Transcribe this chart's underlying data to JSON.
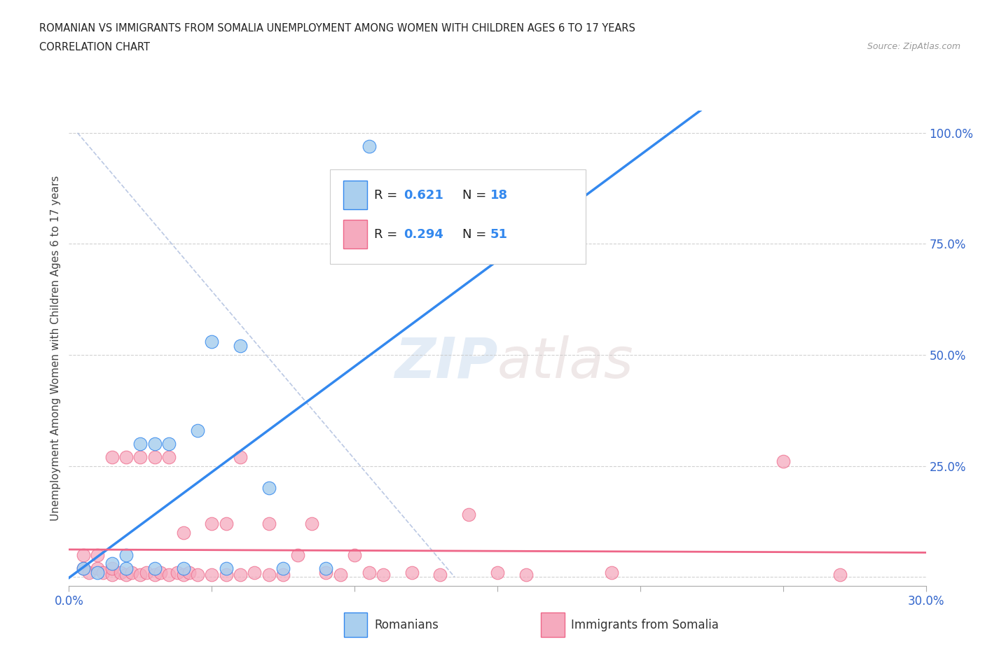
{
  "title_line1": "ROMANIAN VS IMMIGRANTS FROM SOMALIA UNEMPLOYMENT AMONG WOMEN WITH CHILDREN AGES 6 TO 17 YEARS",
  "title_line2": "CORRELATION CHART",
  "source_text": "Source: ZipAtlas.com",
  "ylabel": "Unemployment Among Women with Children Ages 6 to 17 years",
  "xlim": [
    0.0,
    0.3
  ],
  "ylim": [
    -0.02,
    1.05
  ],
  "xticks": [
    0.0,
    0.05,
    0.1,
    0.15,
    0.2,
    0.25,
    0.3
  ],
  "xticklabels": [
    "0.0%",
    "",
    "",
    "",
    "",
    "",
    "30.0%"
  ],
  "ytick_positions": [
    0.0,
    0.25,
    0.5,
    0.75,
    1.0
  ],
  "yticklabels": [
    "",
    "25.0%",
    "50.0%",
    "75.0%",
    "100.0%"
  ],
  "romanian_R": 0.621,
  "romanian_N": 18,
  "somalia_R": 0.294,
  "somalia_N": 51,
  "romanian_color": "#aacfee",
  "somalia_color": "#f5aabe",
  "trend_romanian_color": "#3388ee",
  "trend_somalia_color": "#ee6688",
  "watermark_zip": "ZIP",
  "watermark_atlas": "atlas",
  "background_color": "#ffffff",
  "romanian_x": [
    0.005,
    0.01,
    0.015,
    0.02,
    0.02,
    0.025,
    0.03,
    0.03,
    0.035,
    0.04,
    0.045,
    0.05,
    0.055,
    0.06,
    0.07,
    0.075,
    0.09,
    0.105
  ],
  "romanian_y": [
    0.02,
    0.01,
    0.03,
    0.02,
    0.05,
    0.3,
    0.3,
    0.02,
    0.3,
    0.02,
    0.33,
    0.53,
    0.02,
    0.52,
    0.2,
    0.02,
    0.02,
    0.97
  ],
  "somalia_x": [
    0.005,
    0.005,
    0.007,
    0.01,
    0.01,
    0.012,
    0.015,
    0.015,
    0.015,
    0.018,
    0.02,
    0.02,
    0.022,
    0.025,
    0.025,
    0.027,
    0.03,
    0.03,
    0.032,
    0.035,
    0.035,
    0.038,
    0.04,
    0.04,
    0.042,
    0.045,
    0.05,
    0.05,
    0.055,
    0.055,
    0.06,
    0.06,
    0.065,
    0.07,
    0.07,
    0.075,
    0.08,
    0.085,
    0.09,
    0.095,
    0.1,
    0.105,
    0.11,
    0.12,
    0.13,
    0.14,
    0.15,
    0.16,
    0.19,
    0.25,
    0.27
  ],
  "somalia_y": [
    0.02,
    0.05,
    0.01,
    0.02,
    0.05,
    0.01,
    0.005,
    0.02,
    0.27,
    0.01,
    0.005,
    0.27,
    0.01,
    0.005,
    0.27,
    0.01,
    0.005,
    0.27,
    0.01,
    0.005,
    0.27,
    0.01,
    0.005,
    0.1,
    0.01,
    0.005,
    0.005,
    0.12,
    0.005,
    0.12,
    0.005,
    0.27,
    0.01,
    0.005,
    0.12,
    0.005,
    0.05,
    0.12,
    0.01,
    0.005,
    0.05,
    0.01,
    0.005,
    0.01,
    0.005,
    0.14,
    0.01,
    0.005,
    0.01,
    0.26,
    0.005
  ]
}
